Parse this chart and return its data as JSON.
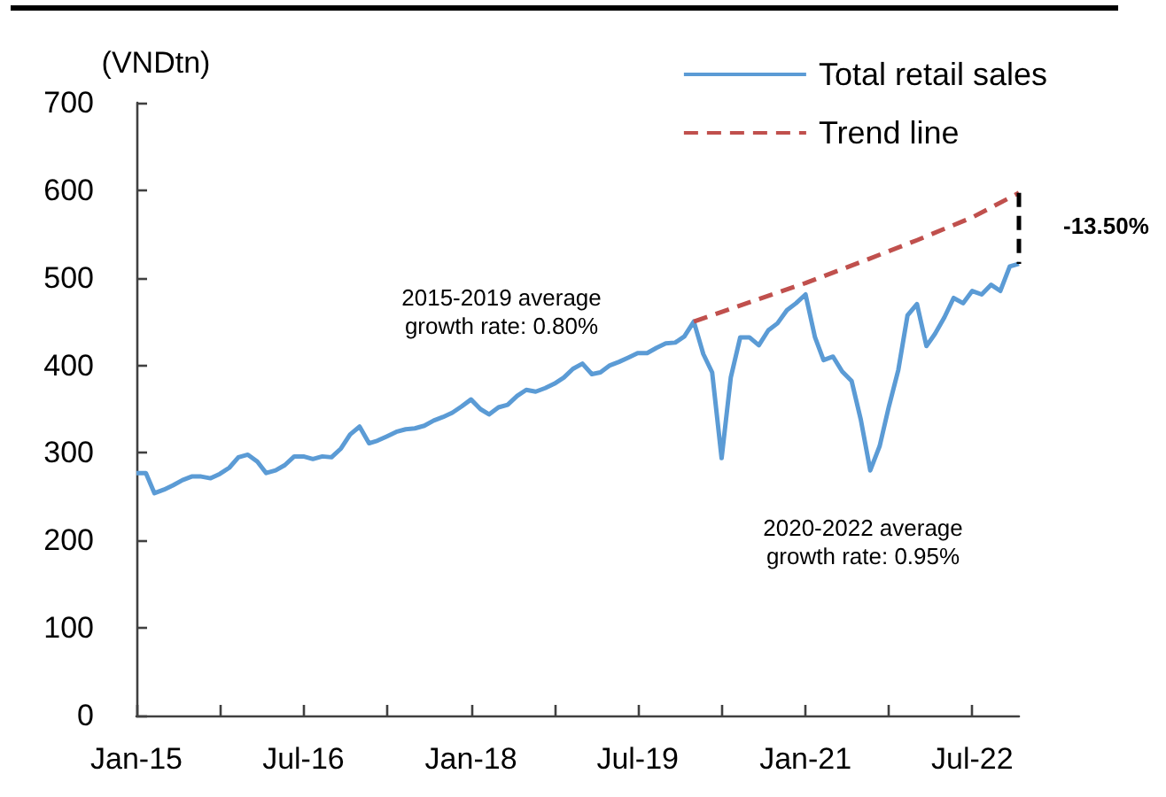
{
  "chart_data": {
    "type": "line",
    "ylabel": "(VNDtn)",
    "x": [
      "2015-01",
      "2015-02",
      "2015-03",
      "2015-04",
      "2015-05",
      "2015-06",
      "2015-07",
      "2015-08",
      "2015-09",
      "2015-10",
      "2015-11",
      "2015-12",
      "2016-01",
      "2016-02",
      "2016-03",
      "2016-04",
      "2016-05",
      "2016-06",
      "2016-07",
      "2016-08",
      "2016-09",
      "2016-10",
      "2016-11",
      "2016-12",
      "2017-01",
      "2017-02",
      "2017-03",
      "2017-04",
      "2017-05",
      "2017-06",
      "2017-07",
      "2017-08",
      "2017-09",
      "2017-10",
      "2017-11",
      "2017-12",
      "2018-01",
      "2018-02",
      "2018-03",
      "2018-04",
      "2018-05",
      "2018-06",
      "2018-07",
      "2018-08",
      "2018-09",
      "2018-10",
      "2018-11",
      "2018-12",
      "2019-01",
      "2019-02",
      "2019-03",
      "2019-04",
      "2019-05",
      "2019-06",
      "2019-07",
      "2019-08",
      "2019-09",
      "2019-10",
      "2019-11",
      "2019-12",
      "2020-01",
      "2020-02",
      "2020-03",
      "2020-04",
      "2020-05",
      "2020-06",
      "2020-07",
      "2020-08",
      "2020-09",
      "2020-10",
      "2020-11",
      "2020-12",
      "2021-01",
      "2021-02",
      "2021-03",
      "2021-04",
      "2021-05",
      "2021-06",
      "2021-07",
      "2021-08",
      "2021-09",
      "2021-10",
      "2021-11",
      "2021-12",
      "2022-01",
      "2022-02",
      "2022-03",
      "2022-04",
      "2022-05",
      "2022-06",
      "2022-07",
      "2022-08",
      "2022-09",
      "2022-10",
      "2022-11",
      "2022-12"
    ],
    "series": [
      {
        "name": "Total retail sales",
        "color": "#5b9bd5",
        "line_style": "solid",
        "values": [
          277,
          277,
          254,
          258,
          263,
          269,
          273,
          273,
          271,
          276,
          283,
          295,
          298,
          290,
          277,
          280,
          286,
          296,
          296,
          293,
          296,
          295,
          305,
          321,
          330,
          311,
          314,
          319,
          324,
          327,
          328,
          331,
          337,
          341,
          346,
          353,
          361,
          350,
          344,
          352,
          355,
          365,
          372,
          370,
          374,
          379,
          386,
          396,
          402,
          390,
          392,
          400,
          404,
          409,
          414,
          414,
          420,
          425,
          426,
          433,
          450,
          413,
          392,
          294,
          386,
          432,
          432,
          423,
          440,
          448,
          463,
          471,
          481,
          432,
          406,
          410,
          393,
          382,
          338,
          280,
          308,
          353,
          395,
          457,
          470,
          422,
          436,
          455,
          477,
          471,
          485,
          481,
          492,
          485,
          513,
          516
        ]
      },
      {
        "name": "Trend line",
        "color": "#c0504d",
        "line_style": "dashed",
        "x": [
          "2020-01",
          "2020-07",
          "2021-01",
          "2021-07",
          "2022-01",
          "2022-07",
          "2022-12"
        ],
        "values": [
          450,
          472,
          494,
          518,
          543,
          569,
          597
        ]
      },
      {
        "color": "#000000",
        "line_style": "dashed",
        "x": [
          "2022-12",
          "2022-12"
        ],
        "values": [
          597,
          516
        ]
      }
    ],
    "xlim": [
      "2015-01",
      "2022-12"
    ],
    "xticks": [
      {
        "value": "2015-01",
        "label": "Jan-15"
      },
      {
        "value": "2015-10",
        "label": null
      },
      {
        "value": "2016-07",
        "label": "Jul-16"
      },
      {
        "value": "2017-04",
        "label": null
      },
      {
        "value": "2018-01",
        "label": "Jan-18"
      },
      {
        "value": "2018-10",
        "label": null
      },
      {
        "value": "2019-07",
        "label": "Jul-19"
      },
      {
        "value": "2020-04",
        "label": null
      },
      {
        "value": "2021-01",
        "label": "Jan-21"
      },
      {
        "value": "2021-10",
        "label": null
      },
      {
        "value": "2022-07",
        "label": "Jul-22"
      }
    ],
    "ylim": [
      0,
      700
    ],
    "yticks": [
      0,
      100,
      200,
      300,
      400,
      500,
      600,
      700
    ],
    "grid": false,
    "legend": "top right",
    "marker": "none",
    "annotations": [
      "2015-2019 average\ngrowth rate: 0.80%",
      "2020-2022 average\ngrowth rate: 0.95%",
      {
        "text": "-13.50%",
        "x": "2022-12",
        "y": 559
      }
    ]
  }
}
